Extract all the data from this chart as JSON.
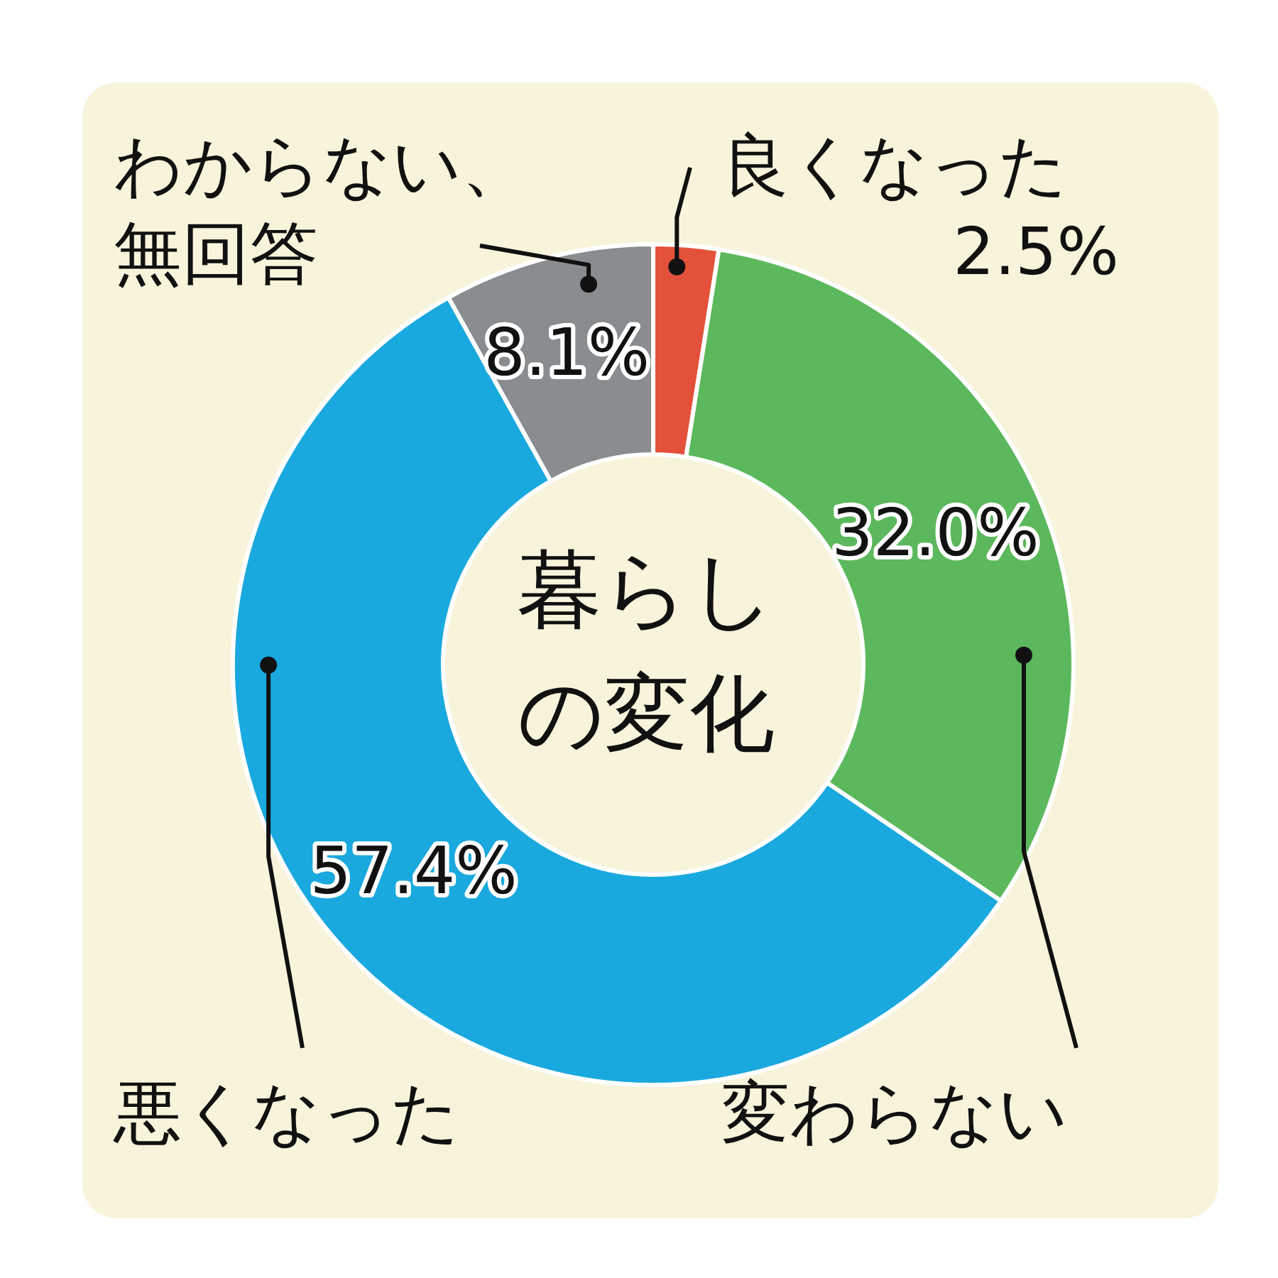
{
  "chart_data": {
    "type": "donut",
    "title": "暮らしの変化",
    "categories": [
      "良くなった",
      "変わらない",
      "悪くなった",
      "わからない、無回答"
    ],
    "values": [
      2.5,
      32.0,
      57.4,
      8.1
    ],
    "colors": [
      "#e4513a",
      "#5cb85c",
      "#1aa9de",
      "#8a8d90"
    ],
    "value_labels": [
      "2.5%",
      "32.0%",
      "57.4%",
      "8.1%"
    ]
  }
}
